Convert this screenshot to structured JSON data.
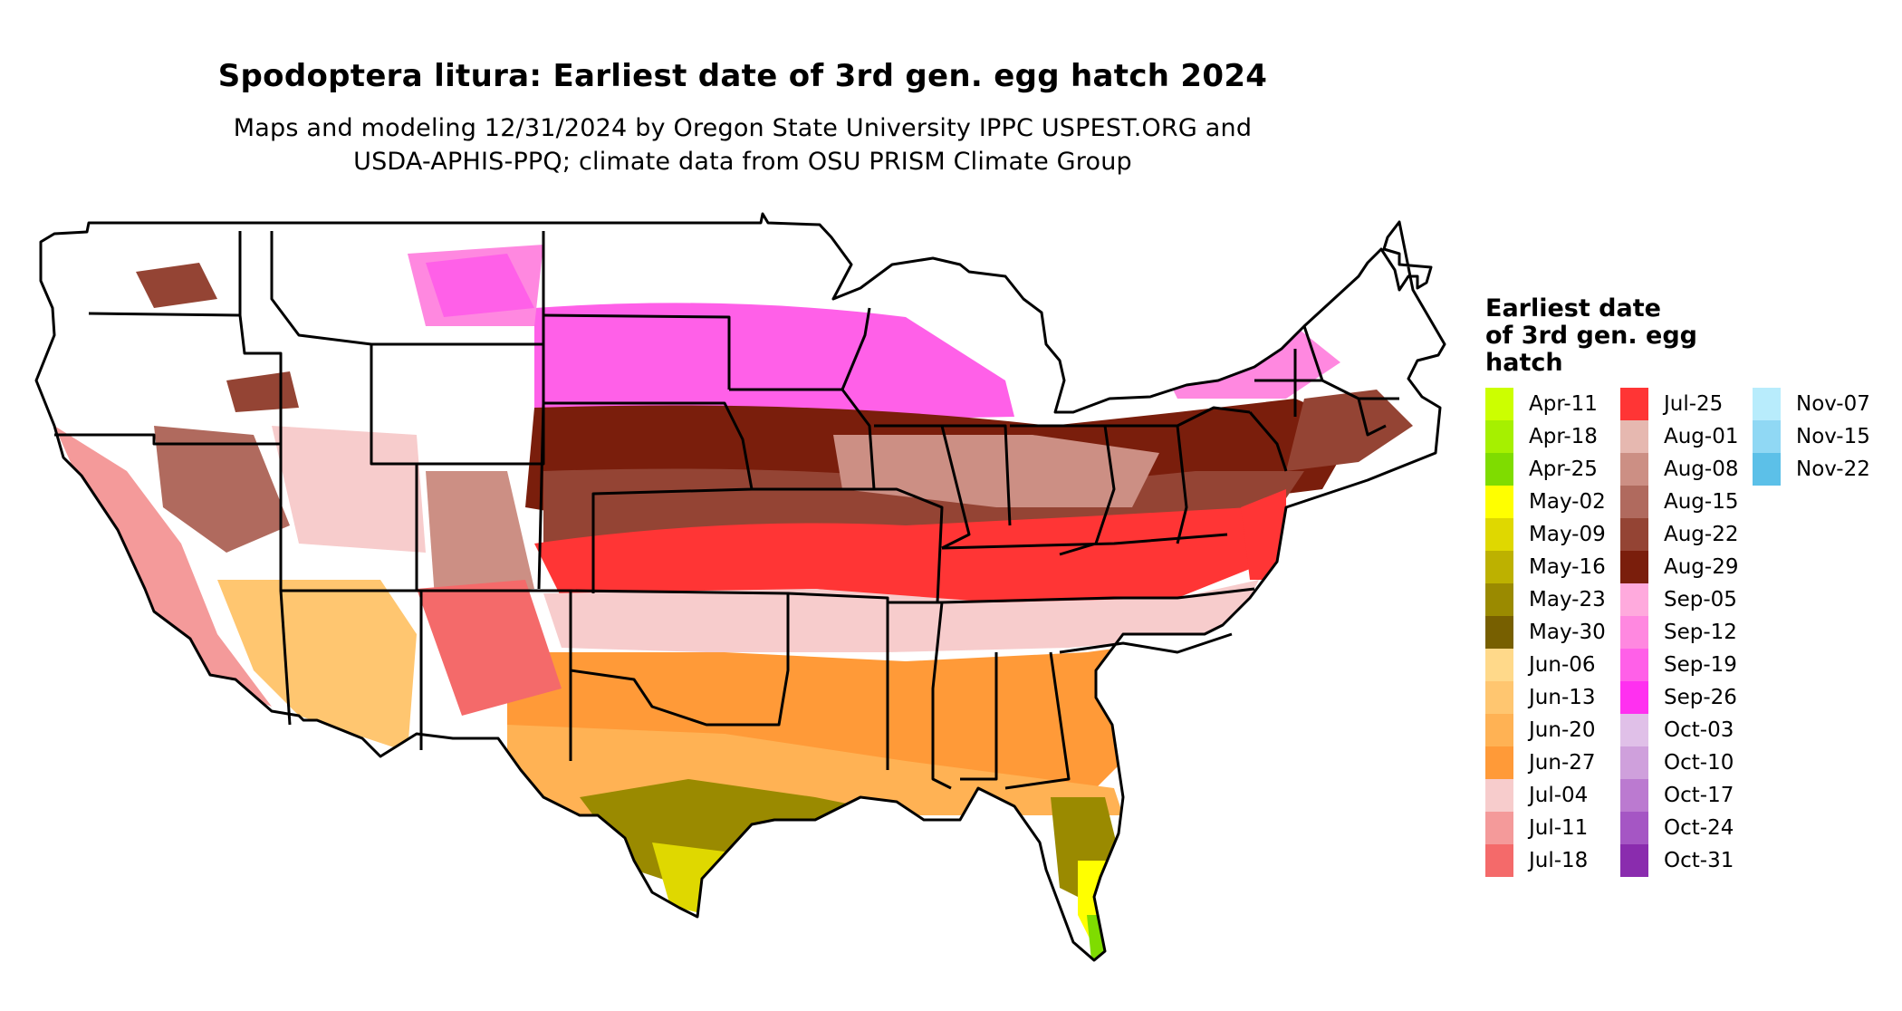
{
  "map": {
    "title": "Spodoptera litura: Earliest date of 3rd gen. egg hatch 2024",
    "subtitle_line1": "Maps and modeling 12/31/2024 by Oregon State University IPPC USPEST.ORG and",
    "subtitle_line2": "USDA-APHIS-PPQ; climate data from OSU PRISM Climate Group",
    "region_shown": "Contiguous United States with state boundaries",
    "no_data_color": "#ffffff",
    "border_color": "#000000"
  },
  "legend": {
    "title_lines": [
      "Earliest date",
      "of 3rd gen. egg",
      "hatch"
    ],
    "columns": [
      [
        {
          "label": "Apr-11",
          "color": "#ccff00"
        },
        {
          "label": "Apr-18",
          "color": "#a6f000"
        },
        {
          "label": "Apr-25",
          "color": "#7fdc00"
        },
        {
          "label": "May-02",
          "color": "#ffff00"
        },
        {
          "label": "May-09",
          "color": "#dfd800"
        },
        {
          "label": "May-16",
          "color": "#bdb100"
        },
        {
          "label": "May-23",
          "color": "#9a8a00"
        },
        {
          "label": "May-30",
          "color": "#775f00"
        },
        {
          "label": "Jun-06",
          "color": "#ffd98a"
        },
        {
          "label": "Jun-13",
          "color": "#ffc670"
        },
        {
          "label": "Jun-20",
          "color": "#ffb254"
        },
        {
          "label": "Jun-27",
          "color": "#ff9a38"
        },
        {
          "label": "Jul-04",
          "color": "#f7cccc"
        },
        {
          "label": "Jul-11",
          "color": "#f49a9a"
        },
        {
          "label": "Jul-18",
          "color": "#f46a6a"
        }
      ],
      [
        {
          "label": "Jul-25",
          "color": "#ff3535"
        },
        {
          "label": "Aug-01",
          "color": "#e6b8b0"
        },
        {
          "label": "Aug-08",
          "color": "#cc8f84"
        },
        {
          "label": "Aug-15",
          "color": "#b06a5e"
        },
        {
          "label": "Aug-22",
          "color": "#944434"
        },
        {
          "label": "Aug-29",
          "color": "#7a1e0c"
        },
        {
          "label": "Sep-05",
          "color": "#ffaadd"
        },
        {
          "label": "Sep-12",
          "color": "#ff88e0"
        },
        {
          "label": "Sep-19",
          "color": "#ff60e8"
        },
        {
          "label": "Sep-26",
          "color": "#ff30f0"
        },
        {
          "label": "Oct-03",
          "color": "#e0c0e8"
        },
        {
          "label": "Oct-10",
          "color": "#cfa0dc"
        },
        {
          "label": "Oct-17",
          "color": "#bb7ad0"
        },
        {
          "label": "Oct-24",
          "color": "#a556c4"
        },
        {
          "label": "Oct-31",
          "color": "#8a2cae"
        }
      ],
      [
        {
          "label": "Nov-07",
          "color": "#b8ecfc"
        },
        {
          "label": "Nov-15",
          "color": "#90d8f4"
        },
        {
          "label": "Nov-22",
          "color": "#5cc0e8"
        }
      ]
    ]
  }
}
